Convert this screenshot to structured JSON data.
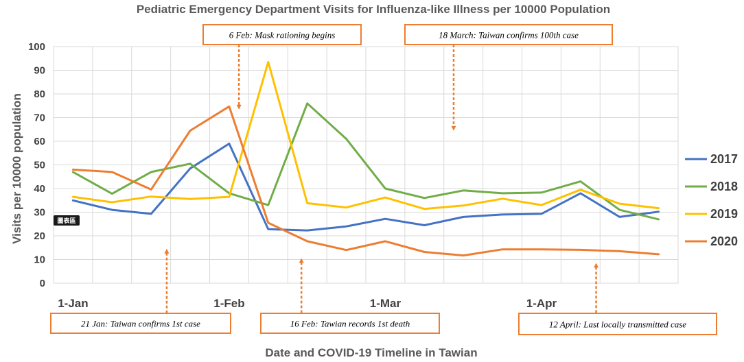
{
  "chart_data": {
    "type": "line",
    "title": "Pediatric Emergency Department Visits for Influenza-like Illness per 10000 Population",
    "xlabel": "Date and COVID-19 Timeline in Tawian",
    "ylabel": "Visits per 10000 population",
    "ylim": [
      0,
      100
    ],
    "yticks": [
      0,
      10,
      20,
      30,
      40,
      50,
      60,
      70,
      80,
      90,
      100
    ],
    "x_points": 16,
    "x_tick_labels": [
      {
        "label": "1-Jan",
        "index": 0.5
      },
      {
        "label": "1-Feb",
        "index": 4.5
      },
      {
        "label": "1-Mar",
        "index": 8.5
      },
      {
        "label": "1-Apr",
        "index": 12.5
      }
    ],
    "grid": true,
    "legend_position": "right",
    "series": [
      {
        "name": "2017",
        "color": "#4472C4",
        "values": [
          35,
          31,
          29.3,
          48.5,
          59,
          22.8,
          22.3,
          24,
          27.2,
          24.5,
          28,
          29,
          29.3,
          38,
          28,
          30.2
        ]
      },
      {
        "name": "2018",
        "color": "#70AD47",
        "values": [
          47,
          37.8,
          47,
          50.5,
          38,
          33,
          76,
          61,
          40,
          36,
          39.2,
          38,
          38.3,
          43,
          31,
          27
        ]
      },
      {
        "name": "2019",
        "color": "#FFC000",
        "values": [
          36.5,
          34.2,
          36.6,
          35.6,
          36.5,
          93.5,
          33.8,
          32,
          36.2,
          31.4,
          32.8,
          35.7,
          33,
          39.5,
          33.6,
          31.7
        ]
      },
      {
        "name": "2020",
        "color": "#ED7D31",
        "values": [
          48,
          47,
          39.6,
          64.5,
          74.7,
          25.5,
          17.7,
          14,
          17.7,
          13.2,
          11.7,
          14.3,
          14.3,
          14.1,
          13.5,
          12.2
        ]
      }
    ],
    "annotations": [
      {
        "text": "6 Feb: Mask rationing begins",
        "position": "top",
        "x_index": 4.75,
        "y_value": 74
      },
      {
        "text": "18 March: Taiwan confirms 100th case",
        "position": "top",
        "x_index": 10.25,
        "y_value": 65
      },
      {
        "text": "21 Jan: Taiwan confirms 1st case",
        "position": "bottom",
        "x_index": 2.9,
        "y_value": 14
      },
      {
        "text": "16 Feb: Tawian records 1st death",
        "position": "bottom",
        "x_index": 6.35,
        "y_value": 10
      },
      {
        "text": "12 April: Last locally transmitted case",
        "position": "bottom",
        "x_index": 13.9,
        "y_value": 8
      }
    ],
    "tooltip": "圖表區"
  }
}
